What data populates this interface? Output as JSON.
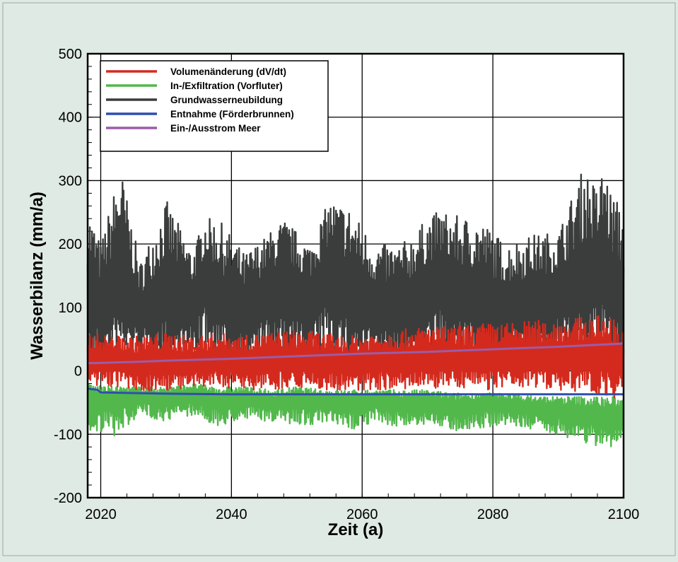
{
  "chart_data": {
    "type": "line",
    "xlabel": "Zeit (a)",
    "ylabel": "Wasserbilanz (mm/a)",
    "xlim": [
      2018,
      2100
    ],
    "ylim": [
      -200,
      500
    ],
    "x_ticks": [
      2020,
      2040,
      2060,
      2080,
      2100
    ],
    "y_ticks": [
      -200,
      -100,
      0,
      100,
      200,
      300,
      400,
      500
    ],
    "x_tick_labels": [
      "2020",
      "2040",
      "2060",
      "2080",
      "2100"
    ],
    "y_tick_labels": [
      "-200",
      "-100",
      "0",
      "100",
      "200",
      "300",
      "400",
      "500"
    ],
    "grid": true,
    "legend_position": "top-left",
    "series": [
      {
        "name": "Volumenänderung (dV/dt)",
        "color": "#d42a1e",
        "x": [
          2018,
          2022,
          2026,
          2030,
          2034,
          2038,
          2042,
          2046,
          2050,
          2054,
          2058,
          2062,
          2066,
          2070,
          2074,
          2078,
          2082,
          2086,
          2090,
          2094,
          2098,
          2100
        ],
        "y": [
          15,
          20,
          10,
          15,
          12,
          18,
          15,
          20,
          18,
          15,
          12,
          18,
          15,
          20,
          18,
          15,
          20,
          18,
          22,
          25,
          20,
          15
        ],
        "band": [
          [
            -30,
            60
          ],
          [
            -25,
            55
          ],
          [
            -35,
            55
          ],
          [
            -30,
            60
          ],
          [
            -30,
            55
          ],
          [
            -25,
            60
          ],
          [
            -30,
            55
          ],
          [
            -30,
            60
          ],
          [
            -25,
            65
          ],
          [
            -30,
            60
          ],
          [
            -35,
            55
          ],
          [
            -30,
            60
          ],
          [
            -30,
            65
          ],
          [
            -30,
            70
          ],
          [
            -25,
            70
          ],
          [
            -30,
            75
          ],
          [
            -30,
            75
          ],
          [
            -25,
            80
          ],
          [
            -30,
            80
          ],
          [
            -35,
            85
          ],
          [
            -40,
            90
          ],
          [
            -50,
            60
          ]
        ]
      },
      {
        "name": "In-/Exfiltration (Vorfluter)",
        "color": "#52b84c",
        "x": [
          2018,
          2022,
          2026,
          2030,
          2034,
          2038,
          2042,
          2046,
          2050,
          2054,
          2058,
          2062,
          2066,
          2070,
          2074,
          2078,
          2082,
          2086,
          2090,
          2094,
          2098,
          2100
        ],
        "y": [
          -45,
          -40,
          -38,
          -42,
          -35,
          -45,
          -40,
          -50,
          -42,
          -45,
          -48,
          -45,
          -50,
          -48,
          -55,
          -50,
          -50,
          -55,
          -60,
          -65,
          -70,
          -60
        ],
        "band": [
          [
            -95,
            -20
          ],
          [
            -105,
            -25
          ],
          [
            -70,
            -25
          ],
          [
            -80,
            -25
          ],
          [
            -70,
            -20
          ],
          [
            -90,
            -25
          ],
          [
            -75,
            -25
          ],
          [
            -80,
            -30
          ],
          [
            -85,
            -25
          ],
          [
            -85,
            -30
          ],
          [
            -95,
            -30
          ],
          [
            -80,
            -30
          ],
          [
            -90,
            -30
          ],
          [
            -85,
            -30
          ],
          [
            -95,
            -35
          ],
          [
            -90,
            -35
          ],
          [
            -85,
            -35
          ],
          [
            -95,
            -40
          ],
          [
            -100,
            -40
          ],
          [
            -115,
            -40
          ],
          [
            -125,
            -40
          ],
          [
            -100,
            -45
          ]
        ]
      },
      {
        "name": "Grundwasserneubildung",
        "color": "#3a3d3c",
        "x": [
          2018,
          2020,
          2023,
          2026,
          2030,
          2034,
          2036,
          2038,
          2042,
          2045,
          2048,
          2052,
          2055,
          2058,
          2062,
          2066,
          2070,
          2072,
          2074,
          2078,
          2082,
          2086,
          2090,
          2094,
          2096,
          2097,
          2098,
          2100
        ],
        "y": [
          120,
          100,
          140,
          90,
          120,
          100,
          150,
          110,
          90,
          120,
          130,
          110,
          160,
          120,
          100,
          90,
          130,
          140,
          120,
          110,
          100,
          110,
          120,
          140,
          150,
          160,
          130,
          100
        ],
        "band": [
          [
            0,
            260
          ],
          [
            10,
            200
          ],
          [
            20,
            325
          ],
          [
            20,
            170
          ],
          [
            10,
            270
          ],
          [
            20,
            190
          ],
          [
            20,
            240
          ],
          [
            20,
            240
          ],
          [
            10,
            185
          ],
          [
            10,
            210
          ],
          [
            10,
            240
          ],
          [
            10,
            200
          ],
          [
            20,
            270
          ],
          [
            10,
            260
          ],
          [
            10,
            200
          ],
          [
            10,
            200
          ],
          [
            10,
            240
          ],
          [
            20,
            255
          ],
          [
            10,
            245
          ],
          [
            10,
            240
          ],
          [
            10,
            200
          ],
          [
            10,
            215
          ],
          [
            20,
            220
          ],
          [
            10,
            325
          ],
          [
            20,
            285
          ],
          [
            20,
            330
          ],
          [
            10,
            285
          ],
          [
            20,
            255
          ]
        ]
      },
      {
        "name": "Entnahme (Förderbrunnen)",
        "color": "#2e4fae",
        "x": [
          2018,
          2019.5,
          2020,
          2025,
          2030,
          2040,
          2050,
          2060,
          2070,
          2080,
          2090,
          2100
        ],
        "y": [
          -28,
          -30,
          -34,
          -35,
          -36,
          -37,
          -37,
          -37,
          -37,
          -37,
          -37,
          -37
        ]
      },
      {
        "name": "Ein-/Ausstrom Meer",
        "color": "#9b5ca8",
        "x": [
          2018,
          2025,
          2030,
          2040,
          2050,
          2060,
          2070,
          2080,
          2090,
          2100
        ],
        "y": [
          12,
          14,
          16,
          19,
          23,
          27,
          30,
          34,
          38,
          43
        ]
      }
    ]
  }
}
